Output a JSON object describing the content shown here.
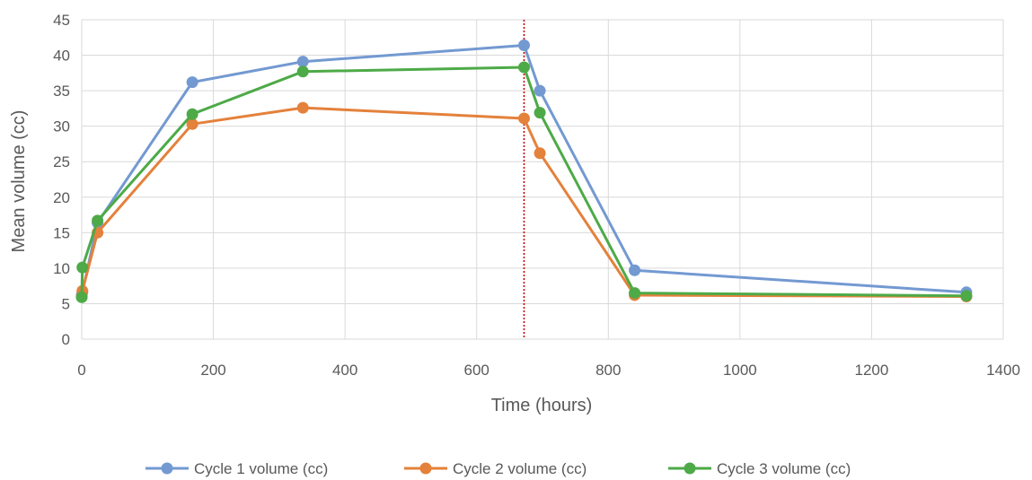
{
  "chart_data": {
    "type": "line",
    "title": "",
    "xlabel": "Time (hours)",
    "ylabel": "Mean volume (cc)",
    "xlim": [
      0,
      1400
    ],
    "ylim": [
      0,
      45
    ],
    "xticks": [
      0,
      200,
      400,
      600,
      800,
      1000,
      1200,
      1400
    ],
    "yticks": [
      0,
      5,
      10,
      15,
      20,
      25,
      30,
      35,
      40,
      45
    ],
    "grid": true,
    "legend_position": "bottom",
    "reference_line": {
      "x": 672,
      "color": "#c00000",
      "style": "dotted"
    },
    "series": [
      {
        "name": "Cycle 1 volume (cc)",
        "color": "#7399d1",
        "x": [
          0,
          1,
          24,
          168,
          336,
          672,
          696,
          840,
          1344
        ],
        "y": [
          6.2,
          6.6,
          16.4,
          36.2,
          39.1,
          41.4,
          35.0,
          9.7,
          6.6
        ]
      },
      {
        "name": "Cycle 2 volume (cc)",
        "color": "#e4813b",
        "x": [
          0,
          1,
          24,
          168,
          336,
          672,
          696,
          840,
          1344
        ],
        "y": [
          6.0,
          6.8,
          15.0,
          30.3,
          32.6,
          31.1,
          26.2,
          6.2,
          6.0
        ]
      },
      {
        "name": "Cycle 3 volume (cc)",
        "color": "#4daa47",
        "x": [
          0,
          1,
          24,
          168,
          336,
          672,
          696,
          840,
          1344
        ],
        "y": [
          5.9,
          10.1,
          16.7,
          31.7,
          37.7,
          38.3,
          31.9,
          6.5,
          6.1
        ]
      }
    ]
  }
}
